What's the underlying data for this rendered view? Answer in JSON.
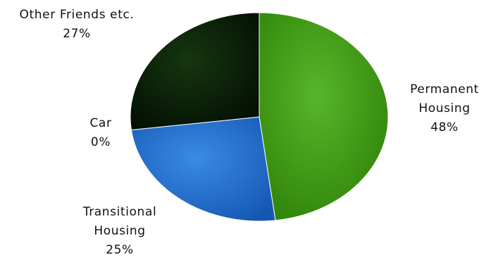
{
  "chart_data": {
    "type": "pie",
    "title": "",
    "slices": [
      {
        "label_lines": [
          "Permanent",
          "Housing"
        ],
        "percent_label": "48%",
        "value": 48,
        "color": "#3e9a12"
      },
      {
        "label_lines": [
          "Transitional",
          "Housing"
        ],
        "percent_label": "25%",
        "value": 25,
        "color": "#1f6fd0"
      },
      {
        "label_lines": [
          "Car"
        ],
        "percent_label": "0%",
        "value": 0,
        "color": "#d04040"
      },
      {
        "label_lines": [
          "Other Friends etc."
        ],
        "percent_label": "27%",
        "value": 27,
        "color": "#0b2108"
      }
    ],
    "legend": "none",
    "start_angle_deg": 0,
    "direction": "clockwise"
  }
}
